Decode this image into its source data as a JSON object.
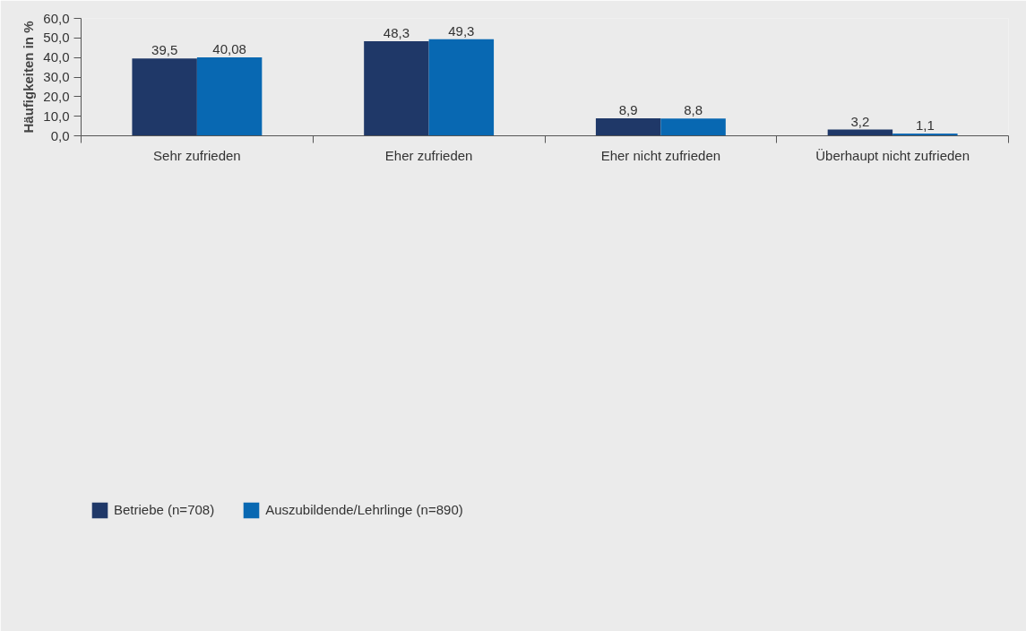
{
  "chart_data": {
    "type": "bar",
    "ylabel": "Häufigkeiten in %",
    "categories": [
      "Sehr zufrieden",
      "Eher zufrieden",
      "Eher nicht zufrieden",
      "Überhaupt nicht zufrieden"
    ],
    "series": [
      {
        "name": "Betriebe (n=708)",
        "color": "#1f3868",
        "values": [
          39.5,
          48.3,
          8.9,
          3.2
        ],
        "value_labels": [
          "39,5",
          "48,3",
          "8,9",
          "3,2"
        ]
      },
      {
        "name": "Auszubildende/Lehrlinge (n=890)",
        "color": "#0868b2",
        "values": [
          40.08,
          49.3,
          8.8,
          1.1
        ],
        "value_labels": [
          "40,08",
          "49,3",
          "8,8",
          "1,1"
        ]
      }
    ],
    "ylim": [
      0,
      60
    ],
    "yticks": [
      {
        "value": 0,
        "label": "0,0"
      },
      {
        "value": 10,
        "label": "10,0"
      },
      {
        "value": 20,
        "label": "20,0"
      },
      {
        "value": 30,
        "label": "30,0"
      },
      {
        "value": 40,
        "label": "40,0"
      },
      {
        "value": 50,
        "label": "50,0"
      },
      {
        "value": 60,
        "label": "60,0"
      }
    ],
    "grid": false,
    "legend": "bottom left"
  }
}
